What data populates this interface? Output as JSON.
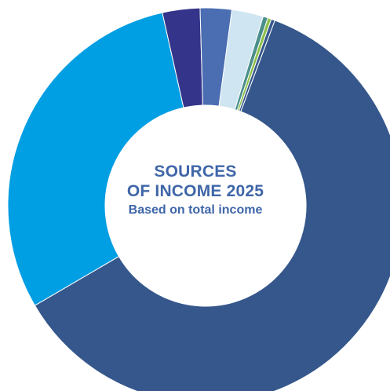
{
  "chart_data": {
    "type": "pie",
    "title_lines": [
      "SOURCES",
      "OF INCOME 2025"
    ],
    "subtitle": "Based on total income",
    "series": [
      {
        "value": 61.5,
        "color": "#36578c"
      },
      {
        "value": 30.2,
        "color": "#009ee3"
      },
      {
        "value": 3.1,
        "color": "#34348a"
      },
      {
        "value": 2.6,
        "color": "#4b6db1"
      },
      {
        "value": 2.6,
        "color": "#cfe5f1"
      },
      {
        "value": 0.4,
        "color": "#4a8f8c"
      },
      {
        "value": 0.3,
        "color": "#8ec04a"
      },
      {
        "value": 0.3,
        "color": "#36578c"
      }
    ],
    "start_angle_deg": 20.5,
    "donut": true
  }
}
